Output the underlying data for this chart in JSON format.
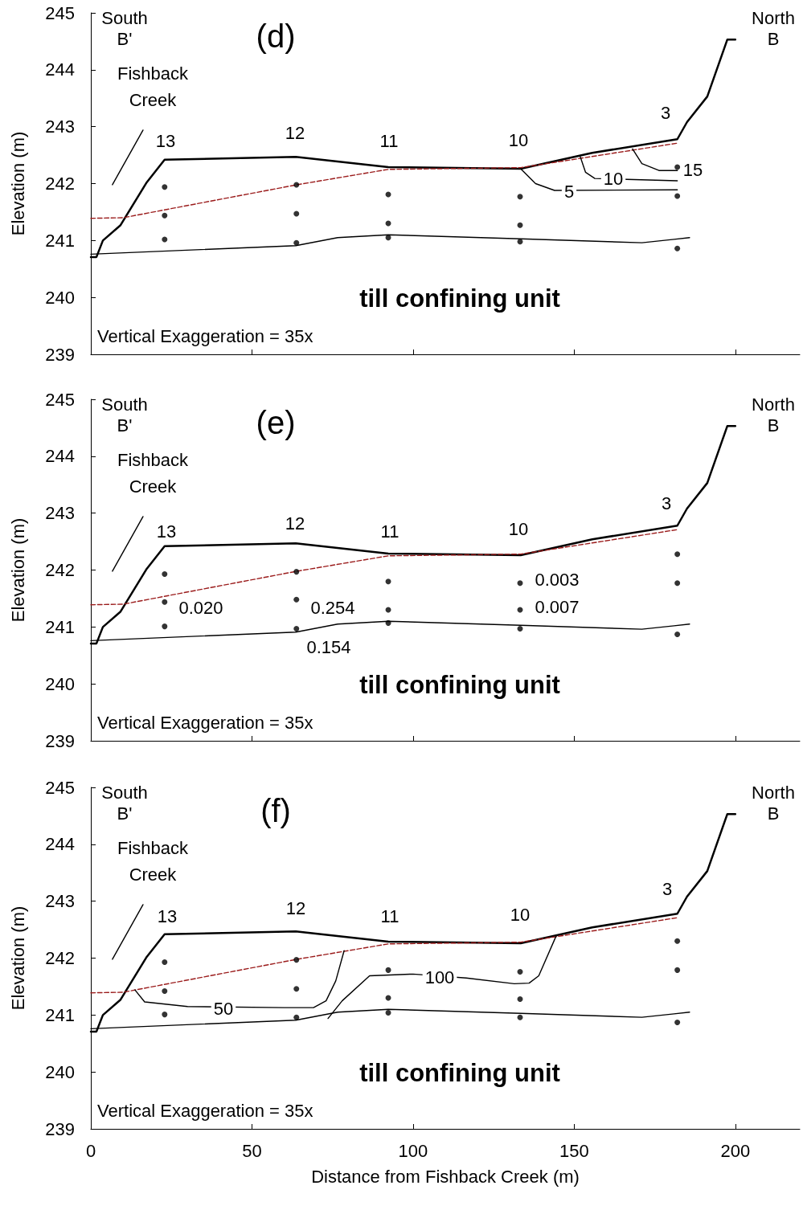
{
  "chart_data": [
    {
      "type": "line",
      "ylabel": "Elevation (m)",
      "xlim": [
        0,
        220
      ],
      "xticks": [
        0,
        50,
        100,
        150,
        200
      ],
      "ylim": [
        239,
        245
      ],
      "yticks": [
        239,
        240,
        241,
        242,
        243,
        244,
        245
      ],
      "tick_labels": "y",
      "annotations": [
        "(d)",
        "South B'",
        "North B",
        "Fishback Creek",
        "till confining unit",
        "Vertical Exaggeration = 35x",
        "13",
        "12",
        "11",
        "10",
        "3",
        "5",
        "10",
        "15"
      ],
      "series": [
        {
          "color": "#000000",
          "marker": "none",
          "line_style": "solid",
          "x": [
            0,
            1.75,
            3.74,
            9.23,
            17.2,
            22.9,
            63.6,
            92.3,
            133.4,
            155.6,
            182,
            185,
            191.3,
            197.5,
            200
          ],
          "values": [
            240.71,
            240.71,
            241.0,
            241.27,
            242.01,
            242.42,
            242.47,
            242.29,
            242.26,
            242.54,
            242.78,
            243.08,
            243.53,
            244.53,
            244.53
          ]
        },
        {
          "color": "#9b1c1c",
          "marker": "none",
          "line_style": "dashed",
          "x": [
            0,
            10,
            64,
            92.3,
            133.4,
            182
          ],
          "values": [
            241.39,
            241.4,
            241.98,
            242.25,
            242.28,
            242.71
          ]
        },
        {
          "color": "#000000",
          "marker": "none",
          "line_style": "solid",
          "x": [
            0,
            63.6,
            76.6,
            92.3,
            133.4,
            171,
            181,
            185.8
          ],
          "values": [
            240.76,
            240.91,
            241.05,
            241.1,
            241.03,
            240.96,
            241.02,
            241.05
          ]
        },
        {
          "color": "#000000",
          "marker": "none",
          "line_style": "solid",
          "x": [
            6.7,
            16.2
          ],
          "values": [
            241.98,
            242.94
          ]
        },
        {
          "color": "#000000",
          "marker": "none",
          "line_style": "solid",
          "x": [
            133.4,
            138,
            143.9,
            182
          ],
          "values": [
            242.26,
            242.0,
            241.88,
            241.89
          ]
        },
        {
          "color": "#000000",
          "marker": "none",
          "line_style": "solid",
          "x": [
            151.9,
            153.5,
            156.4,
            182
          ],
          "values": [
            242.47,
            242.2,
            242.09,
            242.05
          ]
        },
        {
          "color": "#000000",
          "marker": "none",
          "line_style": "solid",
          "x": [
            168.1,
            171,
            176.3,
            182
          ],
          "values": [
            242.61,
            242.35,
            242.23,
            242.23
          ]
        },
        {
          "type": "scatter",
          "color": "#000000",
          "marker": "circle",
          "x": [
            22.9,
            22.9,
            22.9,
            63.8,
            63.8,
            63.8,
            92.3,
            92.3,
            92.3,
            133.2,
            133.2,
            133.2,
            182,
            182,
            182
          ],
          "values": [
            241.94,
            241.44,
            241.02,
            241.98,
            241.47,
            240.96,
            241.81,
            241.3,
            241.05,
            241.77,
            241.27,
            240.98,
            242.29,
            241.78,
            240.86
          ]
        }
      ]
    },
    {
      "type": "line",
      "ylabel": "Elevation (m)",
      "xlim": [
        0,
        220
      ],
      "xticks": [
        0,
        50,
        100,
        150,
        200
      ],
      "ylim": [
        239,
        245
      ],
      "yticks": [
        239,
        240,
        241,
        242,
        243,
        244,
        245
      ],
      "tick_labels": "y",
      "annotations": [
        "(e)",
        "South B'",
        "North B",
        "Fishback Creek",
        "till confining unit",
        "Vertical Exaggeration = 35x",
        "13",
        "12",
        "11",
        "10",
        "3",
        "0.020",
        "0.254",
        "0.154",
        "0.003",
        "0.007"
      ],
      "series": [
        {
          "color": "#000000",
          "marker": "none",
          "line_style": "solid",
          "x": [
            0,
            1.75,
            3.74,
            9.23,
            17.2,
            22.9,
            63.6,
            92.3,
            133.4,
            155.6,
            182,
            185,
            191.3,
            197.5,
            200
          ],
          "values": [
            240.71,
            240.71,
            241.0,
            241.27,
            242.01,
            242.42,
            242.47,
            242.29,
            242.26,
            242.54,
            242.78,
            243.08,
            243.53,
            244.53,
            244.53
          ]
        },
        {
          "color": "#9b1c1c",
          "marker": "none",
          "line_style": "dashed",
          "x": [
            0,
            10,
            64,
            92.3,
            133.4,
            182
          ],
          "values": [
            241.39,
            241.4,
            241.98,
            242.25,
            242.28,
            242.71
          ]
        },
        {
          "color": "#000000",
          "marker": "none",
          "line_style": "solid",
          "x": [
            0,
            63.6,
            76.6,
            92.3,
            133.4,
            171,
            181,
            185.8
          ],
          "values": [
            240.76,
            240.91,
            241.05,
            241.1,
            241.03,
            240.96,
            241.02,
            241.05
          ]
        },
        {
          "color": "#000000",
          "marker": "none",
          "line_style": "solid",
          "x": [
            6.7,
            16.2
          ],
          "values": [
            241.98,
            242.94
          ]
        },
        {
          "type": "scatter",
          "color": "#000000",
          "marker": "circle",
          "x": [
            22.9,
            22.9,
            22.9,
            63.8,
            63.8,
            63.8,
            92.3,
            92.3,
            92.3,
            133.2,
            133.2,
            133.2,
            182,
            182,
            182
          ],
          "values": [
            241.93,
            241.44,
            241.01,
            241.97,
            241.48,
            240.97,
            241.8,
            241.3,
            241.07,
            241.77,
            241.3,
            240.97,
            242.28,
            241.77,
            240.87
          ]
        }
      ]
    },
    {
      "type": "line",
      "xlabel": "Distance from Fishback Creek (m)",
      "ylabel": "Elevation (m)",
      "xlim": [
        0,
        220
      ],
      "xticks": [
        0,
        50,
        100,
        150,
        200
      ],
      "ylim": [
        239,
        245
      ],
      "yticks": [
        239,
        240,
        241,
        242,
        243,
        244,
        245
      ],
      "annotations": [
        "(f)",
        "South B'",
        "North B",
        "Fishback Creek",
        "till confining unit",
        "Vertical Exaggeration = 35x",
        "13",
        "12",
        "11",
        "10",
        "3",
        "50",
        "100"
      ],
      "series": [
        {
          "color": "#000000",
          "marker": "none",
          "line_style": "solid",
          "x": [
            0,
            1.75,
            3.74,
            9.23,
            17.2,
            22.9,
            63.6,
            92.3,
            133.4,
            155.6,
            182,
            185,
            191.3,
            197.5,
            200
          ],
          "values": [
            240.71,
            240.71,
            241.0,
            241.27,
            242.01,
            242.42,
            242.47,
            242.29,
            242.26,
            242.54,
            242.78,
            243.08,
            243.53,
            244.53,
            244.53
          ]
        },
        {
          "color": "#9b1c1c",
          "marker": "none",
          "line_style": "dashed",
          "x": [
            0,
            10,
            64,
            92.3,
            133.4,
            182
          ],
          "values": [
            241.39,
            241.4,
            241.98,
            242.25,
            242.28,
            242.71
          ]
        },
        {
          "color": "#000000",
          "marker": "none",
          "line_style": "solid",
          "x": [
            0,
            63.6,
            76.6,
            92.3,
            133.4,
            171,
            181,
            185.8
          ],
          "values": [
            240.76,
            240.91,
            241.05,
            241.1,
            241.03,
            240.96,
            241.02,
            241.05
          ]
        },
        {
          "color": "#000000",
          "marker": "none",
          "line_style": "solid",
          "x": [
            6.7,
            16.2
          ],
          "values": [
            241.98,
            242.94
          ]
        },
        {
          "color": "#000000",
          "marker": "none",
          "line_style": "solid",
          "x": [
            13.7,
            16.7,
            30,
            60,
            69.1,
            73,
            76,
            78.6
          ],
          "values": [
            241.44,
            241.23,
            241.15,
            241.13,
            241.13,
            241.25,
            241.6,
            242.13
          ]
        },
        {
          "color": "#000000",
          "marker": "none",
          "line_style": "solid",
          "x": [
            73.6,
            78,
            86.5,
            100,
            116.5,
            131.4,
            136,
            139,
            144.4
          ],
          "values": [
            240.94,
            241.25,
            241.69,
            241.72,
            241.65,
            241.55,
            241.56,
            241.69,
            242.39
          ]
        },
        {
          "type": "scatter",
          "color": "#000000",
          "marker": "circle",
          "x": [
            22.9,
            22.9,
            22.9,
            63.8,
            63.8,
            63.8,
            92.3,
            92.3,
            92.3,
            133.2,
            133.2,
            133.2,
            182,
            182,
            182
          ],
          "values": [
            241.93,
            241.42,
            241.01,
            241.97,
            241.46,
            240.96,
            241.79,
            241.3,
            241.04,
            241.76,
            241.28,
            240.96,
            242.3,
            241.79,
            240.87
          ]
        }
      ]
    }
  ]
}
